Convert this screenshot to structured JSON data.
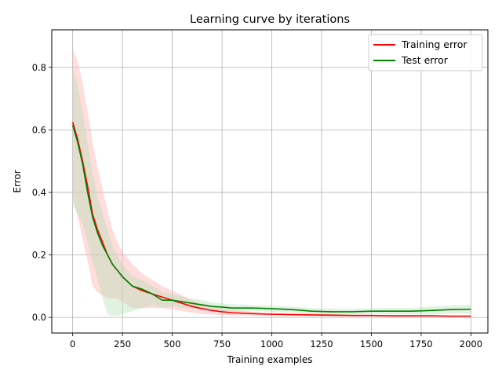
{
  "chart_data": {
    "type": "line",
    "title": "Learning curve by iterations",
    "xlabel": "Training examples",
    "ylabel": "Error",
    "xlim": [
      -105,
      2085
    ],
    "ylim": [
      -0.05,
      0.92
    ],
    "x_ticks": [
      0,
      250,
      500,
      750,
      1000,
      1250,
      1500,
      1750,
      2000
    ],
    "x_tick_labels": [
      "0",
      "250",
      "500",
      "750",
      "1000",
      "1250",
      "1500",
      "1750",
      "2000"
    ],
    "y_ticks": [
      0.0,
      0.2,
      0.4,
      0.6,
      0.8
    ],
    "y_tick_labels": [
      "0.0",
      "0.2",
      "0.4",
      "0.6",
      "0.8"
    ],
    "grid": true,
    "legend_position": "top-right",
    "series": [
      {
        "name": "Training error",
        "color": "#ff0000",
        "band_color": "#ffb3b3",
        "x": [
          0,
          25,
          50,
          75,
          100,
          125,
          150,
          175,
          200,
          225,
          250,
          300,
          350,
          400,
          450,
          500,
          550,
          600,
          650,
          700,
          750,
          800,
          900,
          1000,
          1100,
          1200,
          1300,
          1400,
          1500,
          1600,
          1700,
          1800,
          1900,
          2000
        ],
        "y": [
          0.625,
          0.57,
          0.5,
          0.42,
          0.33,
          0.28,
          0.24,
          0.2,
          0.17,
          0.15,
          0.13,
          0.1,
          0.085,
          0.075,
          0.065,
          0.055,
          0.045,
          0.035,
          0.028,
          0.022,
          0.018,
          0.015,
          0.012,
          0.01,
          0.009,
          0.008,
          0.007,
          0.006,
          0.006,
          0.005,
          0.005,
          0.005,
          0.004,
          0.004
        ],
        "upper": [
          0.86,
          0.82,
          0.75,
          0.66,
          0.56,
          0.48,
          0.41,
          0.34,
          0.28,
          0.24,
          0.21,
          0.17,
          0.14,
          0.12,
          0.1,
          0.085,
          0.07,
          0.055,
          0.045,
          0.035,
          0.029,
          0.024,
          0.018,
          0.015,
          0.013,
          0.012,
          0.011,
          0.009,
          0.008,
          0.007,
          0.007,
          0.007,
          0.006,
          0.006
        ],
        "lower": [
          0.39,
          0.32,
          0.25,
          0.18,
          0.1,
          0.08,
          0.07,
          0.06,
          0.06,
          0.06,
          0.05,
          0.03,
          0.03,
          0.03,
          0.03,
          0.025,
          0.02,
          0.015,
          0.011,
          0.009,
          0.007,
          0.006,
          0.006,
          0.005,
          0.005,
          0.004,
          0.003,
          0.003,
          0.004,
          0.003,
          0.003,
          0.003,
          0.002,
          0.002
        ]
      },
      {
        "name": "Test error",
        "color": "#008000",
        "band_color": "#b3dfb3",
        "x": [
          0,
          25,
          50,
          75,
          100,
          125,
          150,
          175,
          200,
          225,
          250,
          300,
          350,
          400,
          450,
          500,
          550,
          600,
          650,
          700,
          750,
          800,
          900,
          1000,
          1100,
          1200,
          1300,
          1400,
          1500,
          1600,
          1700,
          1800,
          1900,
          2000
        ],
        "y": [
          0.615,
          0.56,
          0.49,
          0.4,
          0.32,
          0.27,
          0.23,
          0.2,
          0.17,
          0.15,
          0.13,
          0.1,
          0.09,
          0.075,
          0.055,
          0.055,
          0.05,
          0.045,
          0.04,
          0.035,
          0.033,
          0.03,
          0.03,
          0.028,
          0.025,
          0.02,
          0.018,
          0.018,
          0.02,
          0.02,
          0.02,
          0.022,
          0.025,
          0.026
        ],
        "upper": [
          0.8,
          0.74,
          0.66,
          0.56,
          0.46,
          0.39,
          0.33,
          0.28,
          0.23,
          0.2,
          0.17,
          0.13,
          0.12,
          0.1,
          0.08,
          0.075,
          0.068,
          0.06,
          0.055,
          0.048,
          0.045,
          0.042,
          0.04,
          0.038,
          0.034,
          0.03,
          0.028,
          0.027,
          0.029,
          0.03,
          0.03,
          0.035,
          0.038,
          0.04
        ],
        "lower": [
          0.36,
          0.33,
          0.3,
          0.24,
          0.18,
          0.12,
          0.06,
          0.01,
          0.005,
          0.005,
          0.01,
          0.02,
          0.03,
          0.04,
          0.03,
          0.035,
          0.03,
          0.03,
          0.025,
          0.022,
          0.021,
          0.018,
          0.02,
          0.018,
          0.016,
          0.01,
          0.008,
          0.009,
          0.011,
          0.01,
          0.01,
          0.009,
          0.012,
          0.012
        ]
      }
    ]
  }
}
